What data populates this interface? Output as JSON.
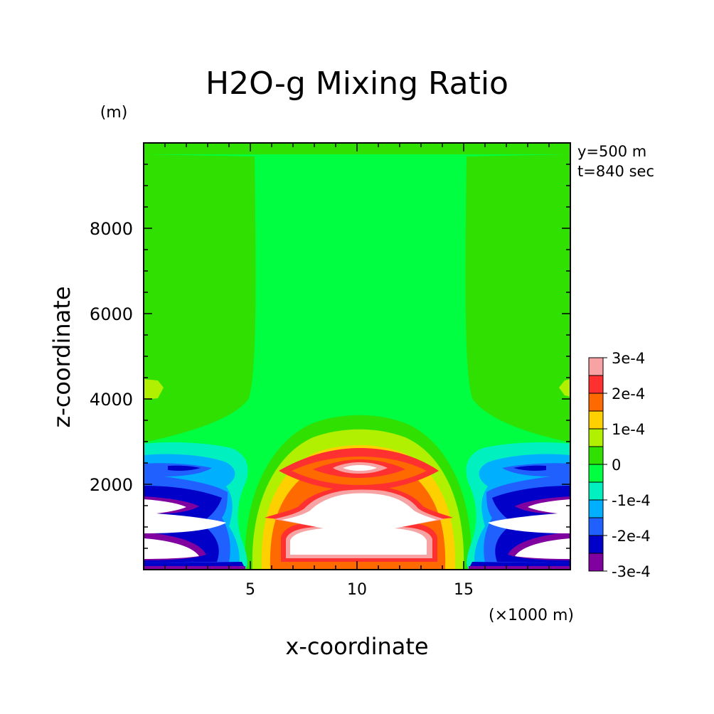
{
  "chart_data": {
    "type": "heatmap",
    "title": "H2O-g Mixing Ratio",
    "y_unit": "(m)",
    "x_unit": "(×1000 m)",
    "xlabel": "x-coordinate",
    "ylabel": "z-coordinate",
    "annotations": [
      "y=500 m",
      "t=840 sec"
    ],
    "xlim": [
      0,
      20
    ],
    "ylim": [
      0,
      10000
    ],
    "x_ticks": [
      5,
      10,
      15
    ],
    "x_tick_labels": [
      "5",
      "10",
      "15"
    ],
    "y_ticks": [
      2000,
      4000,
      6000,
      8000
    ],
    "y_tick_labels": [
      "2000",
      "4000",
      "6000",
      "8000"
    ],
    "colorbar": {
      "labels": [
        "3e-4",
        "2e-4",
        "1e-4",
        "0",
        "-1e-4",
        "-2e-4",
        "-3e-4"
      ],
      "levels_top_to_bottom": [
        0.0003,
        0.00025,
        0.0002,
        0.00015,
        0.0001,
        5e-05,
        0,
        -5e-05,
        -0.0001,
        -0.00015,
        -0.0002,
        -0.00025,
        -0.0003
      ],
      "colors_top_to_bottom": [
        "#f7a3a3",
        "#ff3030",
        "#ff6a00",
        "#ffd000",
        "#b0f000",
        "#30e000",
        "#00ff40",
        "#00f0c0",
        "#00b0ff",
        "#2060ff",
        "#0000c8",
        "#8000a0"
      ]
    },
    "field_colors": {
      "above_max": "#ffffff",
      "pos_pink": "#f7a3a3",
      "pos_red": "#ff3030",
      "pos_orange": "#ff6a00",
      "pos_yellow": "#ffd000",
      "pos_lime": "#b0f000",
      "pos_light_green": "#30e000",
      "zero_green": "#00ff40",
      "neg_aqua": "#00f0c0",
      "neg_sky": "#00b0ff",
      "neg_blue": "#2060ff",
      "neg_navy": "#0000c8",
      "neg_purple": "#8000a0",
      "below_min": "#ffffff"
    }
  }
}
